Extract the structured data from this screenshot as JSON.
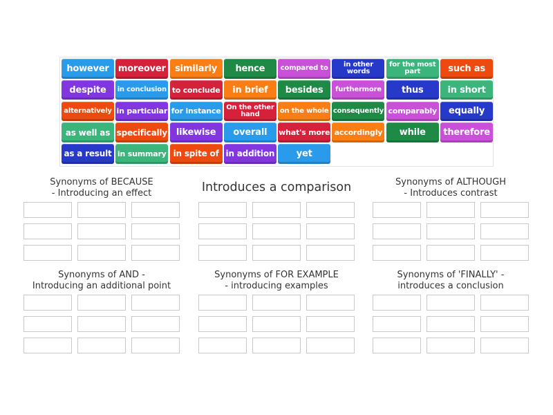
{
  "tiles": [
    {
      "label": "however",
      "color": "#2a9bea",
      "size": "fs13"
    },
    {
      "label": "moreover",
      "color": "#d5213a",
      "size": "fs13"
    },
    {
      "label": "similarly",
      "color": "#fb7e14",
      "size": "fs13"
    },
    {
      "label": "hence",
      "color": "#1e8a45",
      "size": "fs13"
    },
    {
      "label": "compared to",
      "color": "#c851d8",
      "size": "fs10"
    },
    {
      "label": "in other words",
      "color": "#2639c9",
      "size": "two"
    },
    {
      "label": "for the most part",
      "color": "#3cb57c",
      "size": "two"
    },
    {
      "label": "such as",
      "color": "#ee4a0f",
      "size": "fs13"
    },
    {
      "label": "despite",
      "color": "#8236e0",
      "size": "fs13"
    },
    {
      "label": "in conclusion",
      "color": "#2a9bea",
      "size": "fs10"
    },
    {
      "label": "to conclude",
      "color": "#d5213a",
      "size": "fs11"
    },
    {
      "label": "in brief",
      "color": "#fb7e14",
      "size": "fs13"
    },
    {
      "label": "besides",
      "color": "#1e8a45",
      "size": "fs13"
    },
    {
      "label": "furthermore",
      "color": "#c851d8",
      "size": "fs10"
    },
    {
      "label": "thus",
      "color": "#2639c9",
      "size": "fs13"
    },
    {
      "label": "in short",
      "color": "#3cb57c",
      "size": "fs13"
    },
    {
      "label": "alternatively",
      "color": "#ee4a0f",
      "size": "fs10"
    },
    {
      "label": "in particular",
      "color": "#8236e0",
      "size": "fs11"
    },
    {
      "label": "for instance",
      "color": "#2a9bea",
      "size": "fs11"
    },
    {
      "label": "On the other hand",
      "color": "#d5213a",
      "size": "two"
    },
    {
      "label": "on the whole",
      "color": "#fb7e14",
      "size": "fs10"
    },
    {
      "label": "consequently",
      "color": "#1e8a45",
      "size": "fs10"
    },
    {
      "label": "comparably",
      "color": "#c851d8",
      "size": "fs11"
    },
    {
      "label": "equally",
      "color": "#2639c9",
      "size": "fs13"
    },
    {
      "label": "as well as",
      "color": "#3cb57c",
      "size": "fs12"
    },
    {
      "label": "specifically",
      "color": "#ee4a0f",
      "size": "fs12"
    },
    {
      "label": "likewise",
      "color": "#8236e0",
      "size": "fs13"
    },
    {
      "label": "overall",
      "color": "#2a9bea",
      "size": "fs13"
    },
    {
      "label": "what's more",
      "color": "#d5213a",
      "size": "fs11"
    },
    {
      "label": "accordingly",
      "color": "#fb7e14",
      "size": "fs11"
    },
    {
      "label": "while",
      "color": "#1e8a45",
      "size": "fs13"
    },
    {
      "label": "therefore",
      "color": "#c851d8",
      "size": "fs13"
    },
    {
      "label": "as a result",
      "color": "#2639c9",
      "size": "fs12"
    },
    {
      "label": "in summary",
      "color": "#3cb57c",
      "size": "fs11"
    },
    {
      "label": "in spite of",
      "color": "#ee4a0f",
      "size": "fs12"
    },
    {
      "label": "in addition",
      "color": "#8236e0",
      "size": "fs12"
    },
    {
      "label": "yet",
      "color": "#2a9bea",
      "size": "fs13"
    }
  ],
  "groups": [
    {
      "title_line1": "Synonyms of BECAUSE",
      "title_line2": "- Introducing an effect",
      "slots": 9
    },
    {
      "title_line1": "Introduces a comparison",
      "title_line2": "",
      "slots": 9
    },
    {
      "title_line1": "Synonyms of ALTHOUGH",
      "title_line2": "- Introduces contrast",
      "slots": 9
    },
    {
      "title_line1": "Synonyms of AND -",
      "title_line2": "Introducing an additional point",
      "slots": 9
    },
    {
      "title_line1": "Synonyms of FOR EXAMPLE",
      "title_line2": "- introducing examples",
      "slots": 9
    },
    {
      "title_line1": "Synonyms of 'FINALLY' -",
      "title_line2": "introduces a conclusion",
      "slots": 9
    }
  ]
}
